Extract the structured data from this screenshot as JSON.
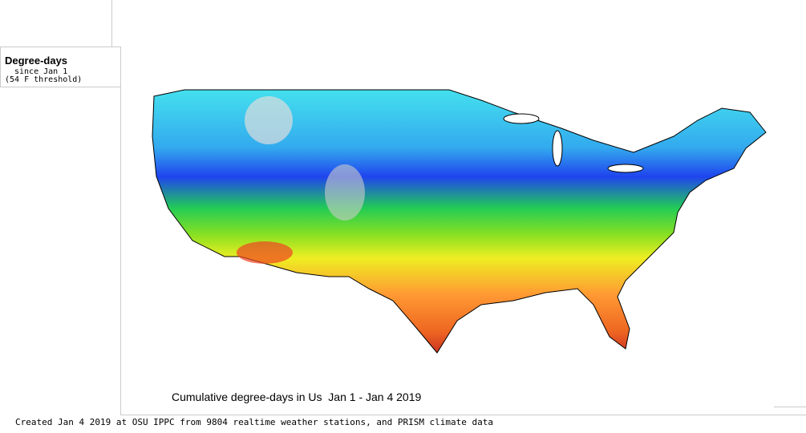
{
  "legend": {
    "title": "Degree-days",
    "subtitle": "since Jan 1",
    "threshold": "(54 F threshold)"
  },
  "map": {
    "title": "Cumulative degree-days in Us  Jan 1 - Jan 4 2019"
  },
  "footer": {
    "credit": "Created Jan 4 2019 at OSU IPPC from 9804 realtime weather stations, and PRISM climate data"
  }
}
